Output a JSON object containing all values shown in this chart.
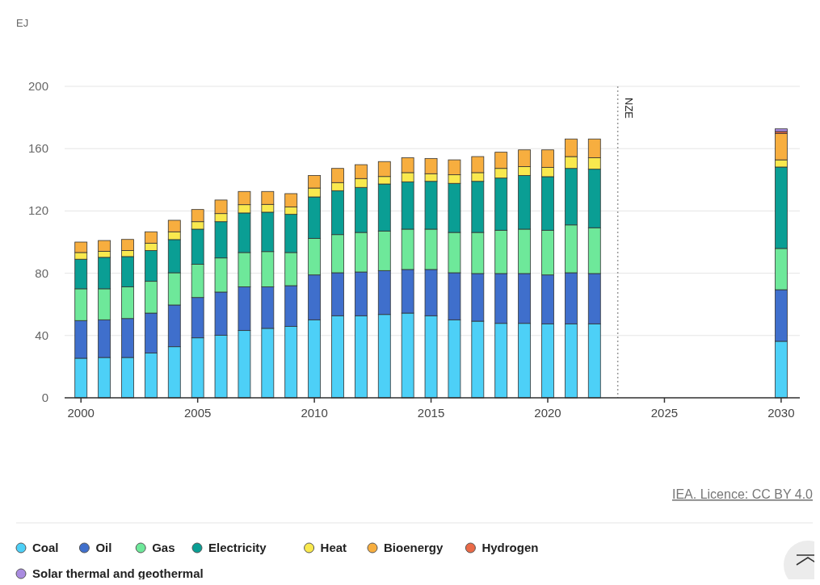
{
  "chart_data": {
    "type": "bar",
    "stacked": true,
    "ylabel": "EJ",
    "x": [
      2000,
      2001,
      2002,
      2003,
      2004,
      2005,
      2006,
      2007,
      2008,
      2009,
      2010,
      2011,
      2012,
      2013,
      2014,
      2015,
      2016,
      2017,
      2018,
      2019,
      2020,
      2021,
      2022,
      2030
    ],
    "xlim": [
      1999.3,
      2030.8
    ],
    "xticks": [
      2000,
      2005,
      2010,
      2015,
      2020,
      2025,
      2030
    ],
    "ylim": [
      0,
      200
    ],
    "yticks": [
      0,
      40,
      80,
      120,
      160,
      200
    ],
    "grid": "y",
    "legend": "bottom",
    "series": [
      {
        "name": "Coal",
        "color": "#4dd0f7",
        "values": [
          25.4,
          25.9,
          25.9,
          28.8,
          32.8,
          38.5,
          40.2,
          43.2,
          44.6,
          45.8,
          50.1,
          52.7,
          52.7,
          53.5,
          54.4,
          52.7,
          50.1,
          49.2,
          47.8,
          47.8,
          47.5,
          47.5,
          47.5,
          36.3
        ]
      },
      {
        "name": "Oil",
        "color": "#3f6fcc",
        "values": [
          24.2,
          24.2,
          25.0,
          25.6,
          26.8,
          25.9,
          27.7,
          28.1,
          26.7,
          26.2,
          28.8,
          27.6,
          28.1,
          28.2,
          28.0,
          29.7,
          30.2,
          30.6,
          32.0,
          32.0,
          31.4,
          32.8,
          32.3,
          33.1
        ]
      },
      {
        "name": "Gas",
        "color": "#6ee89a",
        "values": [
          20.4,
          19.9,
          20.4,
          20.4,
          20.7,
          21.4,
          21.9,
          22.0,
          22.6,
          21.3,
          23.5,
          24.5,
          25.4,
          25.4,
          25.9,
          25.9,
          25.9,
          26.4,
          27.8,
          28.5,
          28.7,
          30.7,
          29.4,
          26.5
        ]
      },
      {
        "name": "Electricity",
        "color": "#0a9e94",
        "values": [
          19.0,
          20.2,
          19.4,
          19.8,
          21.3,
          22.5,
          23.3,
          25.4,
          25.3,
          24.5,
          26.6,
          28.2,
          28.9,
          30.2,
          30.4,
          30.7,
          31.5,
          32.8,
          33.5,
          34.5,
          34.4,
          36.3,
          37.6,
          52.3
        ]
      },
      {
        "name": "Heat",
        "color": "#f9e94e",
        "values": [
          4.3,
          3.9,
          3.9,
          4.7,
          5.0,
          4.8,
          5.2,
          5.3,
          5.0,
          4.8,
          5.7,
          5.2,
          5.7,
          4.8,
          5.9,
          4.9,
          5.5,
          5.6,
          6.2,
          5.7,
          6.0,
          7.6,
          7.4,
          4.6
        ]
      },
      {
        "name": "Bioenergy",
        "color": "#f7ae3f",
        "values": [
          6.7,
          6.9,
          7.1,
          7.3,
          7.4,
          7.8,
          8.7,
          8.5,
          8.3,
          8.5,
          8.1,
          9.1,
          8.9,
          9.6,
          9.6,
          9.8,
          9.6,
          10.3,
          10.4,
          10.7,
          11.2,
          11.3,
          12.0,
          17.0
        ]
      },
      {
        "name": "Hydrogen",
        "color": "#ea6a47",
        "values": [
          null,
          null,
          null,
          null,
          null,
          null,
          null,
          null,
          null,
          null,
          null,
          null,
          null,
          null,
          null,
          null,
          null,
          null,
          null,
          null,
          null,
          null,
          null,
          1.2
        ]
      },
      {
        "name": "Solar thermal and geothermal",
        "color": "#a98be0",
        "values": [
          null,
          null,
          null,
          null,
          null,
          null,
          null,
          null,
          null,
          null,
          null,
          null,
          null,
          null,
          null,
          null,
          null,
          null,
          null,
          null,
          null,
          null,
          null,
          1.7
        ]
      }
    ],
    "ref_lines": [
      {
        "axis": "x",
        "value": 2023,
        "label": "NZE",
        "line_style": "dotted",
        "color": "#999999"
      }
    ],
    "annotations": [
      "IEA. Licence: CC BY 4.0"
    ]
  }
}
